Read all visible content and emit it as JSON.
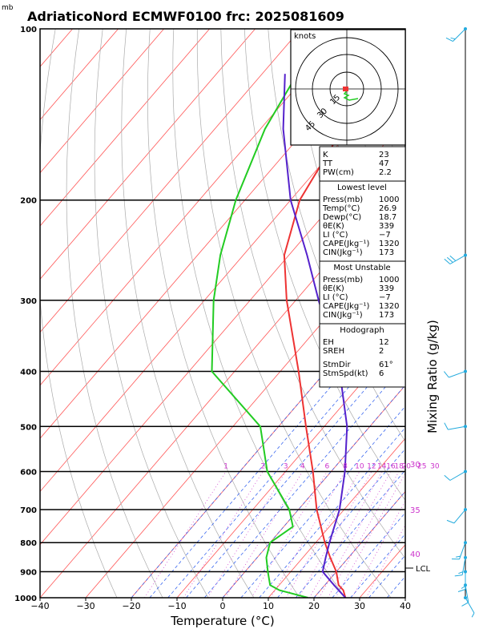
{
  "header": {
    "title": "AdriaticoNord ECMWF0100 frc: 2025081609",
    "pressure_unit": "mb"
  },
  "axes": {
    "xlabel": "Temperature (°C)",
    "ylabel": "Mixing Ratio (g/kg)",
    "x_ticks": [
      "−40",
      "−30",
      "−20",
      "−10",
      "0",
      "10",
      "20",
      "30",
      "40"
    ],
    "p_ticks": [
      "100",
      "200",
      "300",
      "400",
      "500",
      "600",
      "700",
      "800",
      "900",
      "1000"
    ]
  },
  "hodograph": {
    "units_label": "knots",
    "ring_labels": [
      "15",
      "30",
      "45"
    ]
  },
  "indices": {
    "general": [
      {
        "key": "K",
        "value": "23"
      },
      {
        "key": "TT",
        "value": "47"
      },
      {
        "key": "PW(cm)",
        "value": "2.2"
      }
    ],
    "lowest_title": "Lowest level",
    "lowest": [
      {
        "key": "Press(mb)",
        "value": "1000"
      },
      {
        "key": "Temp(°C)",
        "value": "26.9"
      },
      {
        "key": "Dewp(°C)",
        "value": "18.7"
      },
      {
        "key": "θE(K)",
        "value": "339"
      },
      {
        "key": "LI (°C)",
        "value": "−7"
      },
      {
        "key": "CAPE(Jkg⁻¹)",
        "value": "1320"
      },
      {
        "key": "CIN(Jkg⁻¹)",
        "value": "173"
      }
    ],
    "unstable_title": "Most Unstable",
    "unstable": [
      {
        "key": "Press(mb)",
        "value": "1000"
      },
      {
        "key": "θE(K)",
        "value": "339"
      },
      {
        "key": "LI (°C)",
        "value": "−7"
      },
      {
        "key": "CAPE(Jkg⁻¹)",
        "value": "1320"
      },
      {
        "key": "CIN(Jkg⁻¹)",
        "value": "173"
      }
    ],
    "hodo_title": "Hodograph",
    "hodo": [
      {
        "key": "EH",
        "value": "12"
      },
      {
        "key": "SREH",
        "value": "2"
      },
      {
        "key": "StmDir",
        "value": "61°"
      },
      {
        "key": "StmSpd(kt)",
        "value": "6"
      }
    ]
  },
  "mixing_ratio_labels": [
    "1",
    "2",
    "3",
    "4",
    "6",
    "8",
    "10",
    "12",
    "14",
    "16",
    "18",
    "20",
    "25",
    "30"
  ],
  "theta_e_labels": [
    "30",
    "35",
    "40"
  ],
  "lcl_label": "LCL",
  "colors": {
    "temperature": "#ee3333",
    "dewpoint": "#22cc22",
    "parcel": "#5522cc",
    "isotherm": "#ff5555",
    "dry_adiabat": "#aaaaaa",
    "moist_adiabat": "#2255ee",
    "mixing_ratio": "#cc33cc",
    "wind_barb": "#22aadd"
  },
  "chart_data": {
    "type": "skew-t log-p sounding",
    "title": "AdriaticoNord ECMWF0100 frc: 2025081609",
    "xlabel": "Temperature (°C)",
    "ylabel": "Mixing Ratio (g/kg)",
    "pressure_range_mb": [
      1000,
      100
    ],
    "temperature_range_c": [
      -40,
      40
    ],
    "series": [
      {
        "name": "Temperature",
        "pressure": [
          1000,
          970,
          950,
          900,
          850,
          800,
          700,
          600,
          500,
          400,
          300,
          250,
          200,
          150,
          100
        ],
        "values": [
          26.9,
          25,
          23,
          20,
          16,
          12,
          4,
          -4,
          -14,
          -26,
          -42,
          -51,
          -58,
          -62,
          -66
        ]
      },
      {
        "name": "Dewpoint",
        "pressure": [
          1000,
          970,
          950,
          900,
          850,
          800,
          750,
          700,
          600,
          500,
          400,
          300,
          250,
          200,
          150,
          100
        ],
        "values": [
          18.7,
          11,
          8,
          5,
          2,
          0,
          2,
          -2,
          -14,
          -24,
          -45,
          -58,
          -65,
          -72,
          -79,
          -85
        ]
      },
      {
        "name": "Parcel",
        "pressure": [
          1000,
          950,
          900,
          850,
          800,
          700,
          600,
          500,
          400,
          300,
          250,
          200,
          150,
          120
        ],
        "values": [
          26.9,
          22,
          17,
          15,
          13,
          9,
          3,
          -5,
          -17,
          -35,
          -46,
          -60,
          -75,
          -85
        ]
      }
    ],
    "wind_barbs": [
      {
        "pressure": 100,
        "direction": 225,
        "speed_kt": 15
      },
      {
        "pressure": 250,
        "direction": 240,
        "speed_kt": 30
      },
      {
        "pressure": 400,
        "direction": 250,
        "speed_kt": 10
      },
      {
        "pressure": 500,
        "direction": 260,
        "speed_kt": 10
      },
      {
        "pressure": 600,
        "direction": 240,
        "speed_kt": 10
      },
      {
        "pressure": 700,
        "direction": 220,
        "speed_kt": 10
      },
      {
        "pressure": 800,
        "direction": 200,
        "speed_kt": 15
      },
      {
        "pressure": 850,
        "direction": 190,
        "speed_kt": 15
      },
      {
        "pressure": 900,
        "direction": 180,
        "speed_kt": 15
      },
      {
        "pressure": 950,
        "direction": 170,
        "speed_kt": 10
      },
      {
        "pressure": 1000,
        "direction": 150,
        "speed_kt": 5
      }
    ],
    "lcl_pressure": 895
  }
}
